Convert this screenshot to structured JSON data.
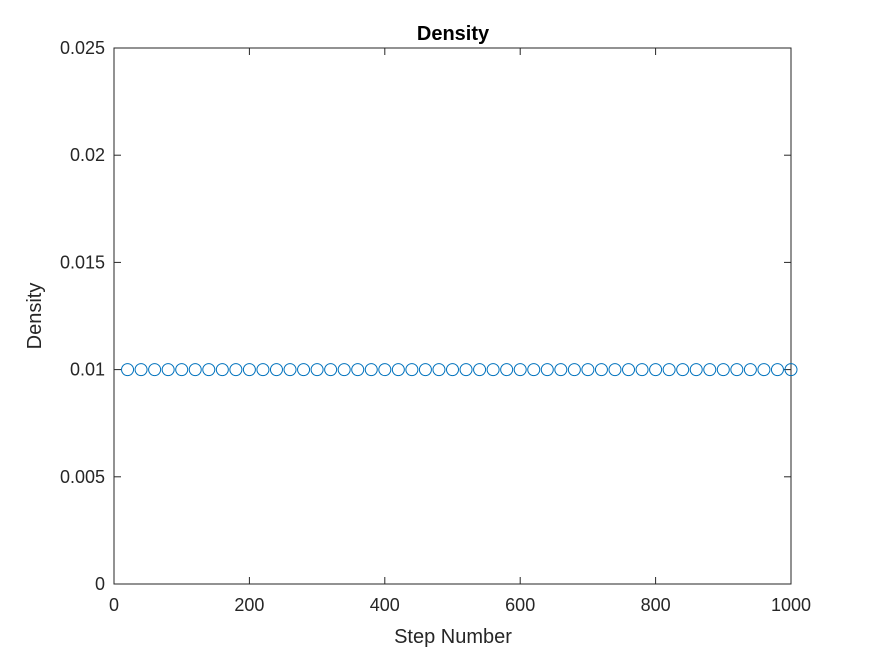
{
  "chart_data": {
    "type": "scatter",
    "title": "Density",
    "xlabel": "Step Number",
    "ylabel": "Density",
    "xlim": [
      0,
      1000
    ],
    "ylim": [
      0,
      0.025
    ],
    "xticks": [
      0,
      200,
      400,
      600,
      800,
      1000
    ],
    "xtick_labels": [
      "0",
      "200",
      "400",
      "600",
      "800",
      "1000"
    ],
    "yticks": [
      0,
      0.005,
      0.01,
      0.015,
      0.02,
      0.025
    ],
    "ytick_labels": [
      "0",
      "0.005",
      "0.01",
      "0.015",
      "0.02",
      "0.025"
    ],
    "grid": false,
    "marker": "circle-open",
    "series": [
      {
        "color": "#0072BD",
        "x": [
          20,
          40,
          60,
          80,
          100,
          120,
          140,
          160,
          180,
          200,
          220,
          240,
          260,
          280,
          300,
          320,
          340,
          360,
          380,
          400,
          420,
          440,
          460,
          480,
          500,
          520,
          540,
          560,
          580,
          600,
          620,
          640,
          660,
          680,
          700,
          720,
          740,
          760,
          780,
          800,
          820,
          840,
          860,
          880,
          900,
          920,
          940,
          960,
          980,
          1000
        ],
        "y": [
          0.01,
          0.01,
          0.01,
          0.01,
          0.01,
          0.01,
          0.01,
          0.01,
          0.01,
          0.01,
          0.01,
          0.01,
          0.01,
          0.01,
          0.01,
          0.01,
          0.01,
          0.01,
          0.01,
          0.01,
          0.01,
          0.01,
          0.01,
          0.01,
          0.01,
          0.01,
          0.01,
          0.01,
          0.01,
          0.01,
          0.01,
          0.01,
          0.01,
          0.01,
          0.01,
          0.01,
          0.01,
          0.01,
          0.01,
          0.01,
          0.01,
          0.01,
          0.01,
          0.01,
          0.01,
          0.01,
          0.01,
          0.01,
          0.01,
          0.01
        ]
      }
    ]
  }
}
